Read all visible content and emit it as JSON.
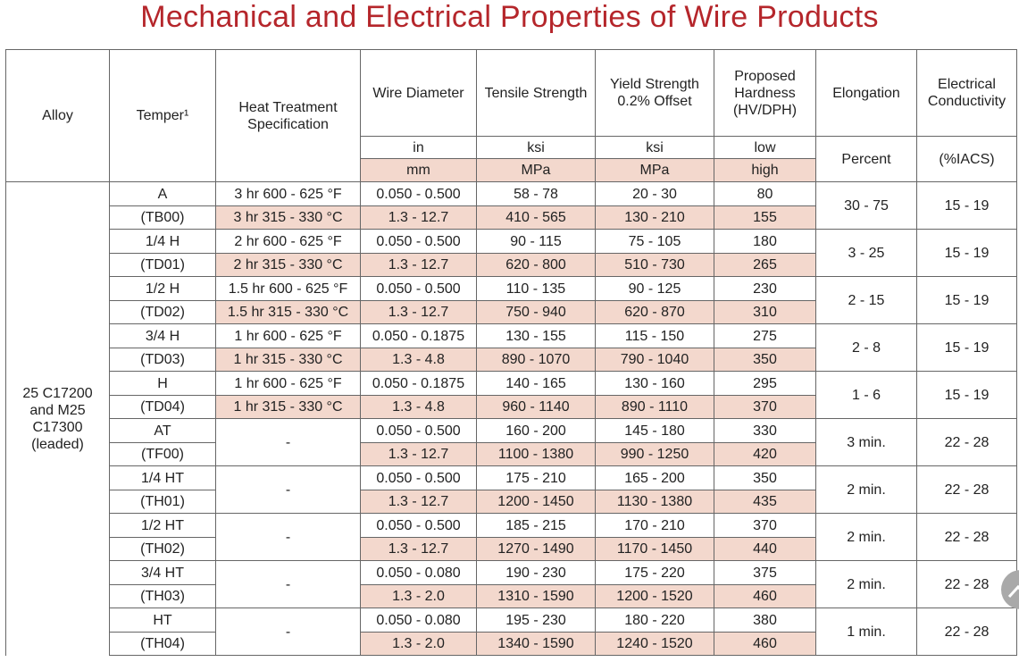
{
  "title": "Mechanical and Electrical Properties of Wire Products",
  "colors": {
    "title": "#b5262b",
    "highlight_row": "#f3d8cd",
    "border": "#666666"
  },
  "headers": {
    "alloy": "Alloy",
    "temper": "Temper¹",
    "heat_treatment": "Heat Treatment Specification",
    "wire_diameter": "Wire Diameter",
    "tensile_strength": "Tensile Strength",
    "yield_strength": "Yield Strength 0.2% Offset",
    "hardness": "Proposed Hardness (HV/DPH)",
    "elongation": "Elongation",
    "conductivity": "Electrical Conductivity"
  },
  "units": {
    "diameter": [
      "in",
      "mm"
    ],
    "tensile": [
      "ksi",
      "MPa"
    ],
    "yield": [
      "ksi",
      "MPa"
    ],
    "hardness": [
      "low",
      "high"
    ],
    "elongation": "Percent",
    "conductivity": "(%IACS)"
  },
  "alloy_name": "25 C17200 and M25 C17300 (leaded)",
  "rows": [
    {
      "temper": "A",
      "code": "(TB00)",
      "heat": [
        "3 hr 600 - 625 °F",
        "3 hr 315 - 330 °C"
      ],
      "diameter": [
        "0.050 - 0.500",
        "1.3 - 12.7"
      ],
      "tensile": [
        "58 - 78",
        "410 - 565"
      ],
      "yield": [
        "20 - 30",
        "130 - 210"
      ],
      "hardness": [
        "80",
        "155"
      ],
      "elongation": "30 - 75",
      "conductivity": "15 - 19"
    },
    {
      "temper": "1/4 H",
      "code": "(TD01)",
      "heat": [
        "2 hr 600 - 625 °F",
        "2 hr 315 - 330 °C"
      ],
      "diameter": [
        "0.050 - 0.500",
        "1.3 - 12.7"
      ],
      "tensile": [
        "90 - 115",
        "620 - 800"
      ],
      "yield": [
        "75 - 105",
        "510 - 730"
      ],
      "hardness": [
        "180",
        "265"
      ],
      "elongation": "3 - 25",
      "conductivity": "15 - 19"
    },
    {
      "temper": "1/2 H",
      "code": "(TD02)",
      "heat": [
        "1.5 hr 600 - 625 °F",
        "1.5 hr 315 - 330 °C"
      ],
      "diameter": [
        "0.050 - 0.500",
        "1.3 - 12.7"
      ],
      "tensile": [
        "110 - 135",
        "750 - 940"
      ],
      "yield": [
        "90 - 125",
        "620 - 870"
      ],
      "hardness": [
        "230",
        "310"
      ],
      "elongation": "2 - 15",
      "conductivity": "15 - 19"
    },
    {
      "temper": "3/4 H",
      "code": "(TD03)",
      "heat": [
        "1 hr 600 - 625 °F",
        "1 hr 315 - 330 °C"
      ],
      "diameter": [
        "0.050 - 0.1875",
        "1.3 - 4.8"
      ],
      "tensile": [
        "130 - 155",
        "890 - 1070"
      ],
      "yield": [
        "115 - 150",
        "790 - 1040"
      ],
      "hardness": [
        "275",
        "350"
      ],
      "elongation": "2 - 8",
      "conductivity": "15 - 19"
    },
    {
      "temper": "H",
      "code": "(TD04)",
      "heat": [
        "1 hr 600 - 625 °F",
        "1 hr 315 - 330 °C"
      ],
      "diameter": [
        "0.050 - 0.1875",
        "1.3 - 4.8"
      ],
      "tensile": [
        "140 - 165",
        "960 - 1140"
      ],
      "yield": [
        "130 - 160",
        "890 - 1110"
      ],
      "hardness": [
        "295",
        "370"
      ],
      "elongation": "1 - 6",
      "conductivity": "15 - 19"
    },
    {
      "temper": "AT",
      "code": "(TF00)",
      "heat": "-",
      "diameter": [
        "0.050 - 0.500",
        "1.3 - 12.7"
      ],
      "tensile": [
        "160 - 200",
        "1100 - 1380"
      ],
      "yield": [
        "145 - 180",
        "990 - 1250"
      ],
      "hardness": [
        "330",
        "420"
      ],
      "elongation": "3 min.",
      "conductivity": "22 - 28"
    },
    {
      "temper": "1/4 HT",
      "code": "(TH01)",
      "heat": "-",
      "diameter": [
        "0.050 - 0.500",
        "1.3 - 12.7"
      ],
      "tensile": [
        "175 - 210",
        "1200 - 1450"
      ],
      "yield": [
        "165 - 200",
        "1130 - 1380"
      ],
      "hardness": [
        "350",
        "435"
      ],
      "elongation": "2 min.",
      "conductivity": "22 - 28"
    },
    {
      "temper": "1/2 HT",
      "code": "(TH02)",
      "heat": "-",
      "diameter": [
        "0.050 - 0.500",
        "1.3 - 12.7"
      ],
      "tensile": [
        "185 - 215",
        "1270 - 1490"
      ],
      "yield": [
        "170 - 210",
        "1170 - 1450"
      ],
      "hardness": [
        "370",
        "440"
      ],
      "elongation": "2 min.",
      "conductivity": "22 - 28"
    },
    {
      "temper": "3/4 HT",
      "code": "(TH03)",
      "heat": "-",
      "diameter": [
        "0.050 - 0.080",
        "1.3 - 2.0"
      ],
      "tensile": [
        "190 - 230",
        "1310 - 1590"
      ],
      "yield": [
        "175 - 220",
        "1200 - 1520"
      ],
      "hardness": [
        "375",
        "460"
      ],
      "elongation": "2 min.",
      "conductivity": "22 - 28"
    },
    {
      "temper": "HT",
      "code": "(TH04)",
      "heat": "-",
      "diameter": [
        "0.050 - 0.080",
        "1.3 - 2.0"
      ],
      "tensile": [
        "195 - 230",
        "1340 - 1590"
      ],
      "yield": [
        "180 - 220",
        "1240 - 1520"
      ],
      "hardness": [
        "380",
        "460"
      ],
      "elongation": "1 min.",
      "conductivity": "22 - 28"
    }
  ]
}
